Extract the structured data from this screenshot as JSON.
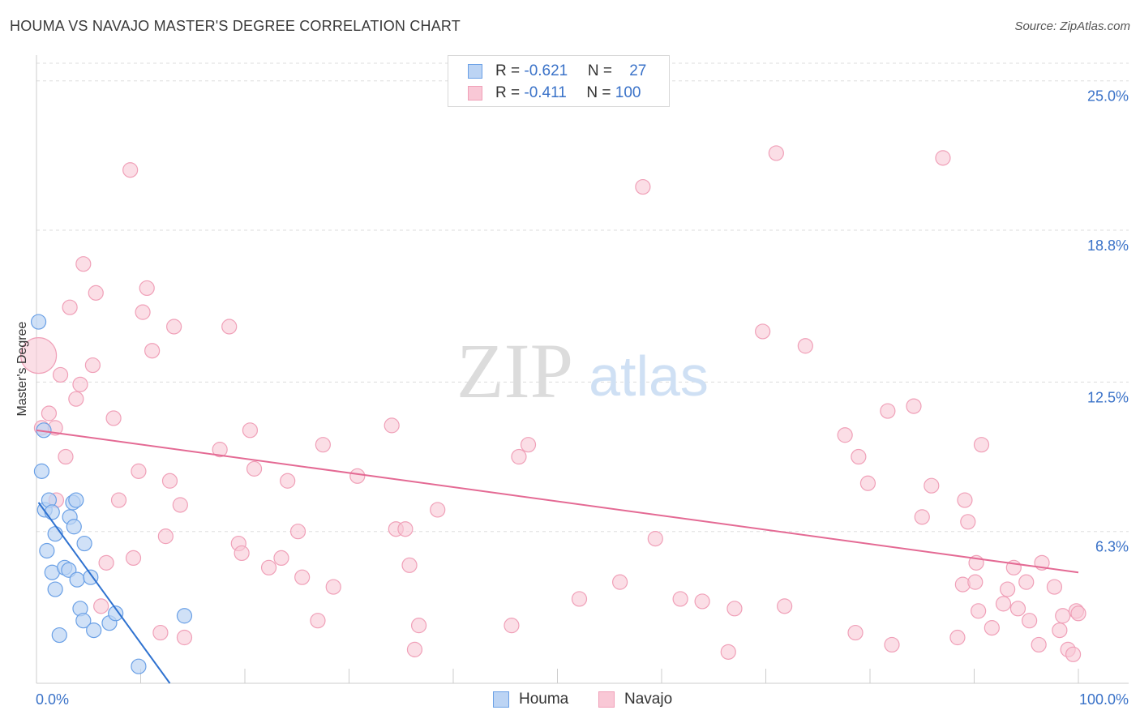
{
  "header": {
    "title": "HOUMA VS NAVAJO MASTER'S DEGREE CORRELATION CHART",
    "source": "Source: ZipAtlas.com"
  },
  "watermark": {
    "zip": "ZIP",
    "atlas": "atlas"
  },
  "legend": {
    "houma": {
      "r_label": "R = ",
      "r_value": "-0.621",
      "n_label": "N = ",
      "n_value": "27"
    },
    "navajo": {
      "r_label": "R = ",
      "r_value": "-0.411",
      "n_label": "N = ",
      "n_value": "100"
    }
  },
  "chart_data": {
    "type": "scatter",
    "title": "HOUMA VS NAVAJO MASTER'S DEGREE CORRELATION CHART",
    "xlabel": "",
    "ylabel": "Master's Degree",
    "xlim": [
      0,
      100
    ],
    "ylim": [
      0,
      26
    ],
    "x_tick_labels": {
      "min": "0.0%",
      "max": "100.0%"
    },
    "y_ticks": [
      6.3,
      12.5,
      18.8,
      25.0
    ],
    "y_tick_labels": [
      "6.3%",
      "12.5%",
      "18.8%",
      "25.0%"
    ],
    "colors": {
      "houma": "#6aa0e6",
      "navajo": "#f0a0b8",
      "houma_line": "#2f72d0",
      "navajo_line": "#e46a94"
    },
    "series": [
      {
        "name": "Houma",
        "r": -0.621,
        "n": 27,
        "trend": {
          "x0": 0.2,
          "y0": 7.5,
          "x1": 12.8,
          "y1": 0.0
        },
        "points": [
          [
            0.2,
            15.0
          ],
          [
            0.7,
            10.5
          ],
          [
            0.5,
            8.8
          ],
          [
            0.8,
            7.2
          ],
          [
            1.2,
            7.6
          ],
          [
            1.5,
            7.1
          ],
          [
            1.8,
            6.2
          ],
          [
            1.0,
            5.5
          ],
          [
            1.5,
            4.6
          ],
          [
            1.8,
            3.9
          ],
          [
            2.2,
            2.0
          ],
          [
            2.7,
            4.8
          ],
          [
            3.1,
            4.7
          ],
          [
            3.2,
            6.9
          ],
          [
            3.5,
            7.5
          ],
          [
            3.6,
            6.5
          ],
          [
            3.9,
            4.3
          ],
          [
            4.2,
            3.1
          ],
          [
            4.5,
            2.6
          ],
          [
            4.6,
            5.8
          ],
          [
            5.2,
            4.4
          ],
          [
            5.5,
            2.2
          ],
          [
            7.0,
            2.5
          ],
          [
            7.6,
            2.9
          ],
          [
            9.8,
            0.7
          ],
          [
            14.2,
            2.8
          ],
          [
            3.8,
            7.6
          ]
        ]
      },
      {
        "name": "Navajo",
        "r": -0.411,
        "n": 100,
        "trend": {
          "x0": 0.0,
          "y0": 10.5,
          "x1": 100.0,
          "y1": 4.6
        },
        "points": [
          [
            0.2,
            13.6
          ],
          [
            1.2,
            11.2
          ],
          [
            1.8,
            10.6
          ],
          [
            2.3,
            12.8
          ],
          [
            2.8,
            9.4
          ],
          [
            3.2,
            15.6
          ],
          [
            3.8,
            11.8
          ],
          [
            4.2,
            12.4
          ],
          [
            4.5,
            17.4
          ],
          [
            5.4,
            13.2
          ],
          [
            5.7,
            16.2
          ],
          [
            6.2,
            3.2
          ],
          [
            6.7,
            5.0
          ],
          [
            7.4,
            11.0
          ],
          [
            7.9,
            7.6
          ],
          [
            9.0,
            21.3
          ],
          [
            9.3,
            5.2
          ],
          [
            9.8,
            8.8
          ],
          [
            10.2,
            15.4
          ],
          [
            10.6,
            16.4
          ],
          [
            11.1,
            13.8
          ],
          [
            11.9,
            2.1
          ],
          [
            12.4,
            6.1
          ],
          [
            12.8,
            8.4
          ],
          [
            13.2,
            14.8
          ],
          [
            13.8,
            7.4
          ],
          [
            14.2,
            1.9
          ],
          [
            17.6,
            9.7
          ],
          [
            18.5,
            14.8
          ],
          [
            19.4,
            5.8
          ],
          [
            19.7,
            5.4
          ],
          [
            20.5,
            10.5
          ],
          [
            20.9,
            8.9
          ],
          [
            22.3,
            4.8
          ],
          [
            23.5,
            5.2
          ],
          [
            24.1,
            8.4
          ],
          [
            25.1,
            6.3
          ],
          [
            25.5,
            4.4
          ],
          [
            27.0,
            2.6
          ],
          [
            27.5,
            9.9
          ],
          [
            28.5,
            4.0
          ],
          [
            30.8,
            8.6
          ],
          [
            34.1,
            10.7
          ],
          [
            34.5,
            6.4
          ],
          [
            35.4,
            6.4
          ],
          [
            35.8,
            4.9
          ],
          [
            36.3,
            1.4
          ],
          [
            36.7,
            2.4
          ],
          [
            38.5,
            7.2
          ],
          [
            45.6,
            2.4
          ],
          [
            46.3,
            9.4
          ],
          [
            47.2,
            9.9
          ],
          [
            52.1,
            3.5
          ],
          [
            56.0,
            4.2
          ],
          [
            58.2,
            20.6
          ],
          [
            59.4,
            6.0
          ],
          [
            61.8,
            3.5
          ],
          [
            63.9,
            3.4
          ],
          [
            66.4,
            1.3
          ],
          [
            67.0,
            3.1
          ],
          [
            69.7,
            14.6
          ],
          [
            71.0,
            22.0
          ],
          [
            71.8,
            3.2
          ],
          [
            73.8,
            14.0
          ],
          [
            77.6,
            10.3
          ],
          [
            78.6,
            2.1
          ],
          [
            78.9,
            9.4
          ],
          [
            79.8,
            8.3
          ],
          [
            81.7,
            11.3
          ],
          [
            82.1,
            1.6
          ],
          [
            84.2,
            11.5
          ],
          [
            85.0,
            6.9
          ],
          [
            85.9,
            8.2
          ],
          [
            87.0,
            21.8
          ],
          [
            88.4,
            1.9
          ],
          [
            88.9,
            4.1
          ],
          [
            89.1,
            7.6
          ],
          [
            89.4,
            6.7
          ],
          [
            90.1,
            4.2
          ],
          [
            90.2,
            5.0
          ],
          [
            90.4,
            3.0
          ],
          [
            90.7,
            9.9
          ],
          [
            91.7,
            2.3
          ],
          [
            92.8,
            3.3
          ],
          [
            93.2,
            3.9
          ],
          [
            93.8,
            4.8
          ],
          [
            94.2,
            3.1
          ],
          [
            95.0,
            4.2
          ],
          [
            95.3,
            2.6
          ],
          [
            96.2,
            1.6
          ],
          [
            96.5,
            5.0
          ],
          [
            97.7,
            4.0
          ],
          [
            98.2,
            2.2
          ],
          [
            98.5,
            2.8
          ],
          [
            99.0,
            1.4
          ],
          [
            99.5,
            1.2
          ],
          [
            99.8,
            3.0
          ],
          [
            100.0,
            2.9
          ],
          [
            0.5,
            10.6
          ],
          [
            1.9,
            7.6
          ]
        ]
      }
    ]
  }
}
